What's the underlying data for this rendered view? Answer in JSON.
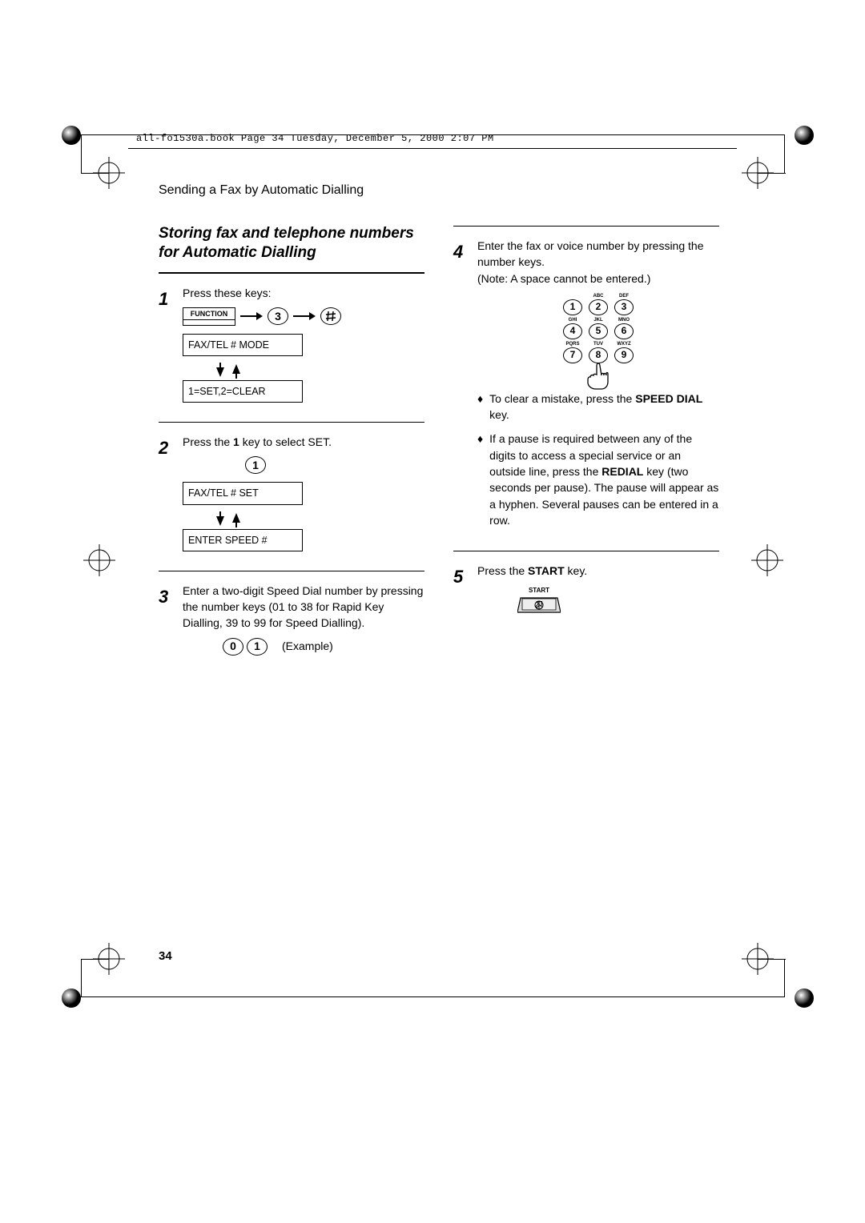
{
  "header": {
    "running_line": "all-fo1530a.book  Page 34  Tuesday, December 5, 2000  2:07 PM"
  },
  "chapter_title": "Sending a Fax by Automatic Dialling",
  "section_title": "Storing fax and telephone numbers for Automatic Dialling",
  "page_number": "34",
  "step1": {
    "num": "1",
    "text": "Press these keys:",
    "func_label": "FUNCTION",
    "key_3": "3",
    "hash_key": "♯",
    "lcd_line1": "FAX/TEL # MODE",
    "lcd_line2": "1=SET,2=CLEAR"
  },
  "step2": {
    "num": "2",
    "text_prefix": "Press the ",
    "text_bold": "1",
    "text_suffix": " key to select SET.",
    "key_1": "1",
    "lcd_line1": "FAX/TEL # SET",
    "lcd_line2": "ENTER SPEED #"
  },
  "step3": {
    "num": "3",
    "text": "Enter a two-digit Speed Dial number by pressing the number keys (01 to 38 for Rapid Key Dialling, 39 to 99 for Speed Dialling).",
    "key_0": "0",
    "key_1": "1",
    "example_label": "(Example)"
  },
  "step4": {
    "num": "4",
    "text": "Enter the fax or voice number by pressing the number keys.\n(Note: A space cannot be entered.)",
    "keypad": {
      "letters": [
        "",
        "ABC",
        "DEF",
        "GHI",
        "JKL",
        "MNO",
        "PQRS",
        "TUV",
        "WXYZ"
      ],
      "digits": [
        "1",
        "2",
        "3",
        "4",
        "5",
        "6",
        "7",
        "8",
        "9"
      ]
    },
    "bullet1_prefix": "To clear a mistake, press the ",
    "bullet1_bold": "SPEED DIAL",
    "bullet1_suffix": " key.",
    "bullet2_prefix": "If a pause is required between any of the digits to access a special service or an outside line, press the ",
    "bullet2_bold": "REDIAL",
    "bullet2_suffix": " key (two seconds per pause). The pause will appear as a hyphen. Several pauses can be entered in a row."
  },
  "step5": {
    "num": "5",
    "text_prefix": "Press the ",
    "text_bold": "START",
    "text_suffix": " key.",
    "start_label": "START"
  }
}
